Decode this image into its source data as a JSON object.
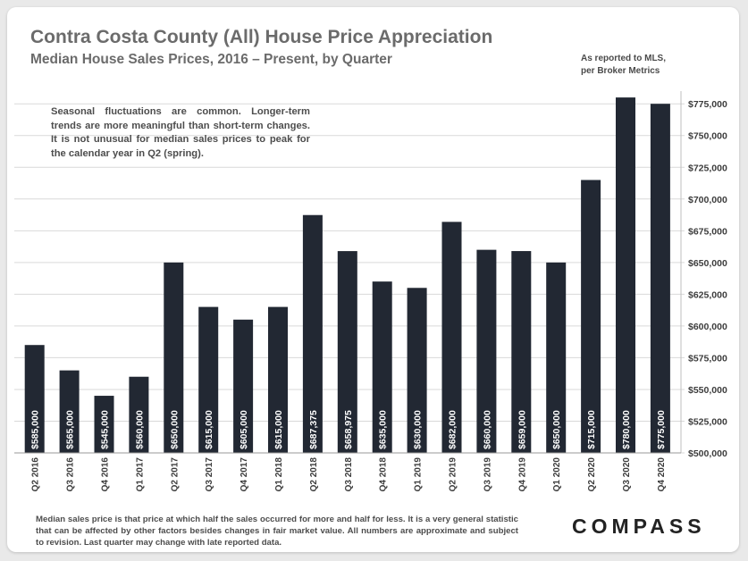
{
  "header": {
    "title": "Contra Costa County (All) House Price Appreciation",
    "subtitle": "Median House Sales Prices, 2016 – Present, by Quarter",
    "source_line1": "As reported to MLS,",
    "source_line2": "per Broker Metrics"
  },
  "note": "Seasonal fluctuations are common. Longer-term trends are more meaningful than short-term changes. It is not unusual for median sales prices to peak for the calendar year in Q2 (spring).",
  "footnote": "Median sales price is that price at which half the sales occurred for more and half for less. It is a very general statistic that can be affected by other factors besides changes in fair market value. All numbers are approximate and subject to revision. Last quarter may change with late reported data.",
  "brand": "COMPASS",
  "colors": {
    "bar": "#222833",
    "grid": "#d9d9d9",
    "text": "#3c3c3c"
  },
  "chart_data": {
    "type": "bar",
    "categories": [
      "Q2 2016",
      "Q3 2016",
      "Q4 2016",
      "Q1 2017",
      "Q2 2017",
      "Q3 2017",
      "Q4 2017",
      "Q1 2018",
      "Q2 2018",
      "Q3 2018",
      "Q4 2018",
      "Q1 2019",
      "Q2 2019",
      "Q3 2019",
      "Q4 2019",
      "Q1 2020",
      "Q2 2020",
      "Q3 2020",
      "Q4 2020"
    ],
    "values": [
      585000,
      565000,
      545000,
      560000,
      650000,
      615000,
      605000,
      615000,
      687375,
      658975,
      635000,
      630000,
      682000,
      660000,
      659000,
      650000,
      715000,
      780000,
      775000
    ],
    "data_labels": [
      "$585,000",
      "$565,000",
      "$545,000",
      "$560,000",
      "$650,000",
      "$615,000",
      "$605,000",
      "$615,000",
      "$687,375",
      "$658,975",
      "$635,000",
      "$630,000",
      "$682,000",
      "$660,000",
      "$659,000",
      "$650,000",
      "$715,000",
      "$780,000",
      "$775,000"
    ],
    "ylim": [
      500000,
      785000
    ],
    "yticks": [
      500000,
      525000,
      550000,
      575000,
      600000,
      625000,
      650000,
      675000,
      700000,
      725000,
      750000,
      775000
    ],
    "ytick_labels": [
      "$500,000",
      "$525,000",
      "$550,000",
      "$575,000",
      "$600,000",
      "$625,000",
      "$650,000",
      "$675,000",
      "$700,000",
      "$725,000",
      "$750,000",
      "$775,000"
    ],
    "yaxis_position": "right",
    "grid": true,
    "xlabel": "",
    "ylabel": ""
  }
}
